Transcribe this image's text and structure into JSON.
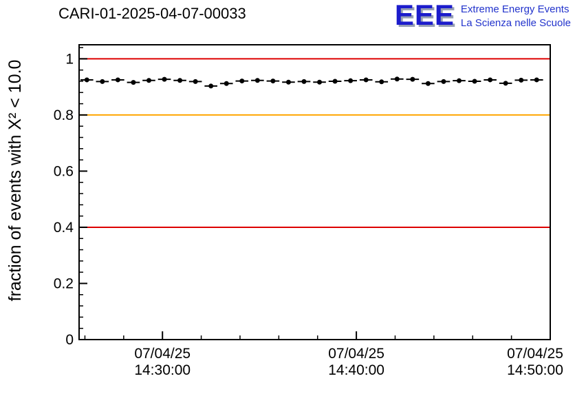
{
  "title": "CARI-01-2025-04-07-00033",
  "logo": {
    "acronym": "EEE",
    "tagline_line1": "Extreme Energy Events",
    "tagline_line2": "La Scienza nelle Scuole",
    "accent_color": "#1c1ccc"
  },
  "chart_data": {
    "type": "scatter",
    "title": "CARI-01-2025-04-07-00033",
    "xlabel": "",
    "ylabel": "fraction of events with X² < 10.0",
    "ylim": [
      0,
      1.05
    ],
    "yticks": [
      0,
      0.2,
      0.4,
      0.6,
      0.8,
      1
    ],
    "ytick_labels": [
      "0",
      "0.2",
      "0.4",
      "0.6",
      "0.8",
      "1"
    ],
    "x_minutes_lim": [
      25.7,
      50.0
    ],
    "xticks_minutes": [
      30,
      40,
      50
    ],
    "xtick_labels": [
      {
        "date": "07/04/25",
        "time": "14:30:00"
      },
      {
        "date": "07/04/25",
        "time": "14:40:00"
      },
      {
        "date": "07/04/25",
        "time": "14:50:00"
      }
    ],
    "grid": false,
    "legend": "none",
    "reference_lines": [
      {
        "y": 1.0,
        "color": "#dd0000",
        "label": "upper-red-threshold"
      },
      {
        "y": 0.8,
        "color": "#ffa500",
        "label": "orange-threshold"
      },
      {
        "y": 0.4,
        "color": "#dd0000",
        "label": "lower-red-threshold"
      }
    ],
    "marker_color": "#000000",
    "x_bin_halfwidth_minutes": 0.33,
    "x_minutes": [
      26.1,
      26.9,
      27.7,
      28.5,
      29.3,
      30.1,
      30.9,
      31.7,
      32.5,
      33.3,
      34.1,
      34.9,
      35.7,
      36.5,
      37.3,
      38.1,
      38.9,
      39.7,
      40.5,
      41.3,
      42.1,
      42.9,
      43.7,
      44.5,
      45.3,
      46.1,
      46.9,
      47.7,
      48.5,
      49.3
    ],
    "y_values": [
      0.925,
      0.919,
      0.925,
      0.916,
      0.923,
      0.927,
      0.923,
      0.919,
      0.903,
      0.912,
      0.921,
      0.923,
      0.921,
      0.917,
      0.919,
      0.917,
      0.92,
      0.922,
      0.925,
      0.918,
      0.928,
      0.927,
      0.912,
      0.919,
      0.922,
      0.92,
      0.925,
      0.913,
      0.924,
      0.925
    ]
  }
}
